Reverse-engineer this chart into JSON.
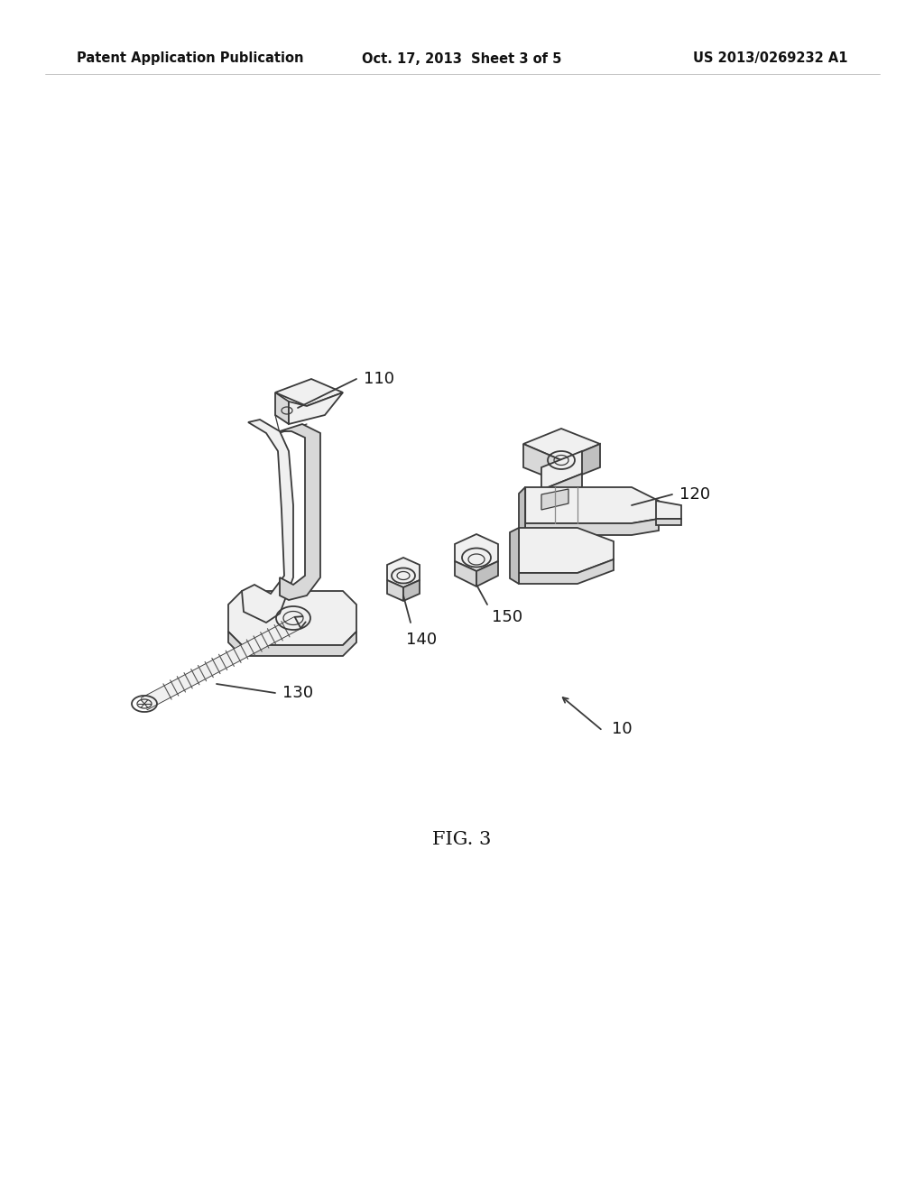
{
  "background_color": "#ffffff",
  "header_left": "Patent Application Publication",
  "header_center": "Oct. 17, 2013  Sheet 3 of 5",
  "header_right": "US 2013/0269232 A1",
  "figure_label": "FIG. 3",
  "label_fontsize": 13,
  "header_fontsize": 10.5,
  "fig_label_fontsize": 15,
  "line_color": "#3a3a3a",
  "fill_light": "#f0f0f0",
  "fill_mid": "#d8d8d8",
  "fill_dark": "#c0c0c0"
}
